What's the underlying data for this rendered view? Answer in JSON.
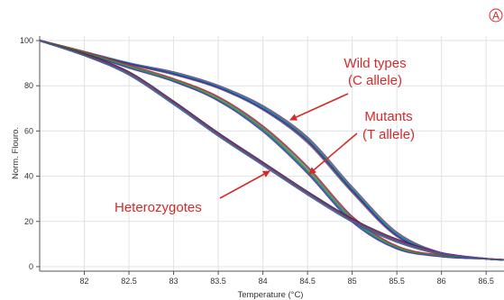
{
  "chart_data": {
    "type": "line",
    "title": "",
    "xlabel": "Temperature (°C)",
    "ylabel": "Norm. Flouro.",
    "xlim": [
      81.5,
      86.7
    ],
    "ylim": [
      -2,
      102
    ],
    "x_ticks": [
      82,
      82.5,
      83,
      83.5,
      84,
      84.5,
      85,
      85.5,
      86,
      86.5
    ],
    "x_tick_labels": [
      "82",
      "82.5",
      "83",
      "83.5",
      "84",
      "84.5",
      "85",
      "85.5",
      "86",
      "86.5"
    ],
    "y_ticks": [
      0,
      20,
      40,
      60,
      80,
      100
    ],
    "y_tick_labels": [
      "0",
      "20",
      "40",
      "60",
      "80",
      "100"
    ],
    "grid": true,
    "panel_label": "A",
    "colors": [
      "#1f3fbf",
      "#2a9a2a",
      "#8a2a8a",
      "#c02a2a",
      "#2a2a2a",
      "#1f8fbf",
      "#7a7a3a",
      "#5a2ac0"
    ],
    "series": [
      {
        "group": "wild_type",
        "x": [
          81.5,
          82,
          82.5,
          83,
          83.5,
          84,
          84.5,
          85,
          85.5,
          86,
          86.5,
          86.7
        ],
        "values": [
          100,
          95,
          90,
          86,
          80,
          71,
          57,
          35,
          15,
          6,
          3.5,
          3
        ]
      },
      {
        "group": "wild_type",
        "x": [
          81.5,
          82,
          82.5,
          83,
          83.5,
          84,
          84.5,
          85,
          85.5,
          86,
          86.5,
          86.7
        ],
        "values": [
          100,
          95,
          90,
          85.5,
          79.5,
          70,
          56,
          34,
          14,
          5.5,
          3.5,
          3
        ]
      },
      {
        "group": "wild_type",
        "x": [
          81.5,
          82,
          82.5,
          83,
          83.5,
          84,
          84.5,
          85,
          85.5,
          86,
          86.5,
          86.7
        ],
        "values": [
          100,
          94.5,
          89.5,
          85,
          79,
          69.5,
          55,
          33,
          13.5,
          5.5,
          3.5,
          3
        ]
      },
      {
        "group": "mutant",
        "x": [
          81.5,
          82,
          82.5,
          83,
          83.5,
          84,
          84.5,
          85,
          85.5,
          86,
          86.5,
          86.7
        ],
        "values": [
          100,
          95,
          89,
          83,
          75,
          62,
          44,
          22,
          9,
          5,
          3.5,
          3
        ]
      },
      {
        "group": "mutant",
        "x": [
          81.5,
          82,
          82.5,
          83,
          83.5,
          84,
          84.5,
          85,
          85.5,
          86,
          86.5,
          86.7
        ],
        "values": [
          100,
          94.5,
          88.5,
          82.5,
          74,
          61,
          42.5,
          21,
          8.5,
          4.5,
          3.5,
          3
        ]
      },
      {
        "group": "mutant",
        "x": [
          81.5,
          82,
          82.5,
          83,
          83.5,
          84,
          84.5,
          85,
          85.5,
          86,
          86.5,
          86.7
        ],
        "values": [
          100,
          94.5,
          88,
          82,
          73.5,
          60,
          41.5,
          20,
          8,
          4.5,
          3.5,
          3
        ]
      },
      {
        "group": "heterozygote",
        "x": [
          81.5,
          82,
          82.5,
          83,
          83.5,
          84,
          84.5,
          85,
          85.5,
          86,
          86.5,
          86.7
        ],
        "values": [
          100,
          94,
          86,
          73,
          59,
          46,
          33,
          21,
          12,
          6,
          3.5,
          3
        ]
      },
      {
        "group": "heterozygote",
        "x": [
          81.5,
          82,
          82.5,
          83,
          83.5,
          84,
          84.5,
          85,
          85.5,
          86,
          86.5,
          86.7
        ],
        "values": [
          100,
          93.5,
          85.5,
          72.5,
          58.5,
          45.5,
          32.5,
          20.5,
          11.5,
          6,
          3.5,
          3
        ]
      },
      {
        "group": "heterozygote",
        "x": [
          81.5,
          82,
          82.5,
          83,
          83.5,
          84,
          84.5,
          85,
          85.5,
          86,
          86.5,
          86.7
        ],
        "values": [
          100,
          93.5,
          85,
          72,
          58,
          45,
          32,
          20,
          11,
          5.5,
          3.5,
          3
        ]
      }
    ],
    "annotations": [
      {
        "lines": [
          "Wild types",
          "(C allele)"
        ],
        "arrow_to": [
          84.35,
          67
        ]
      },
      {
        "lines": [
          "Mutants",
          "(T allele)"
        ],
        "arrow_to": [
          84.55,
          42
        ]
      },
      {
        "lines": [
          "Heterozygotes"
        ],
        "arrow_to": [
          84.1,
          43
        ]
      }
    ]
  }
}
